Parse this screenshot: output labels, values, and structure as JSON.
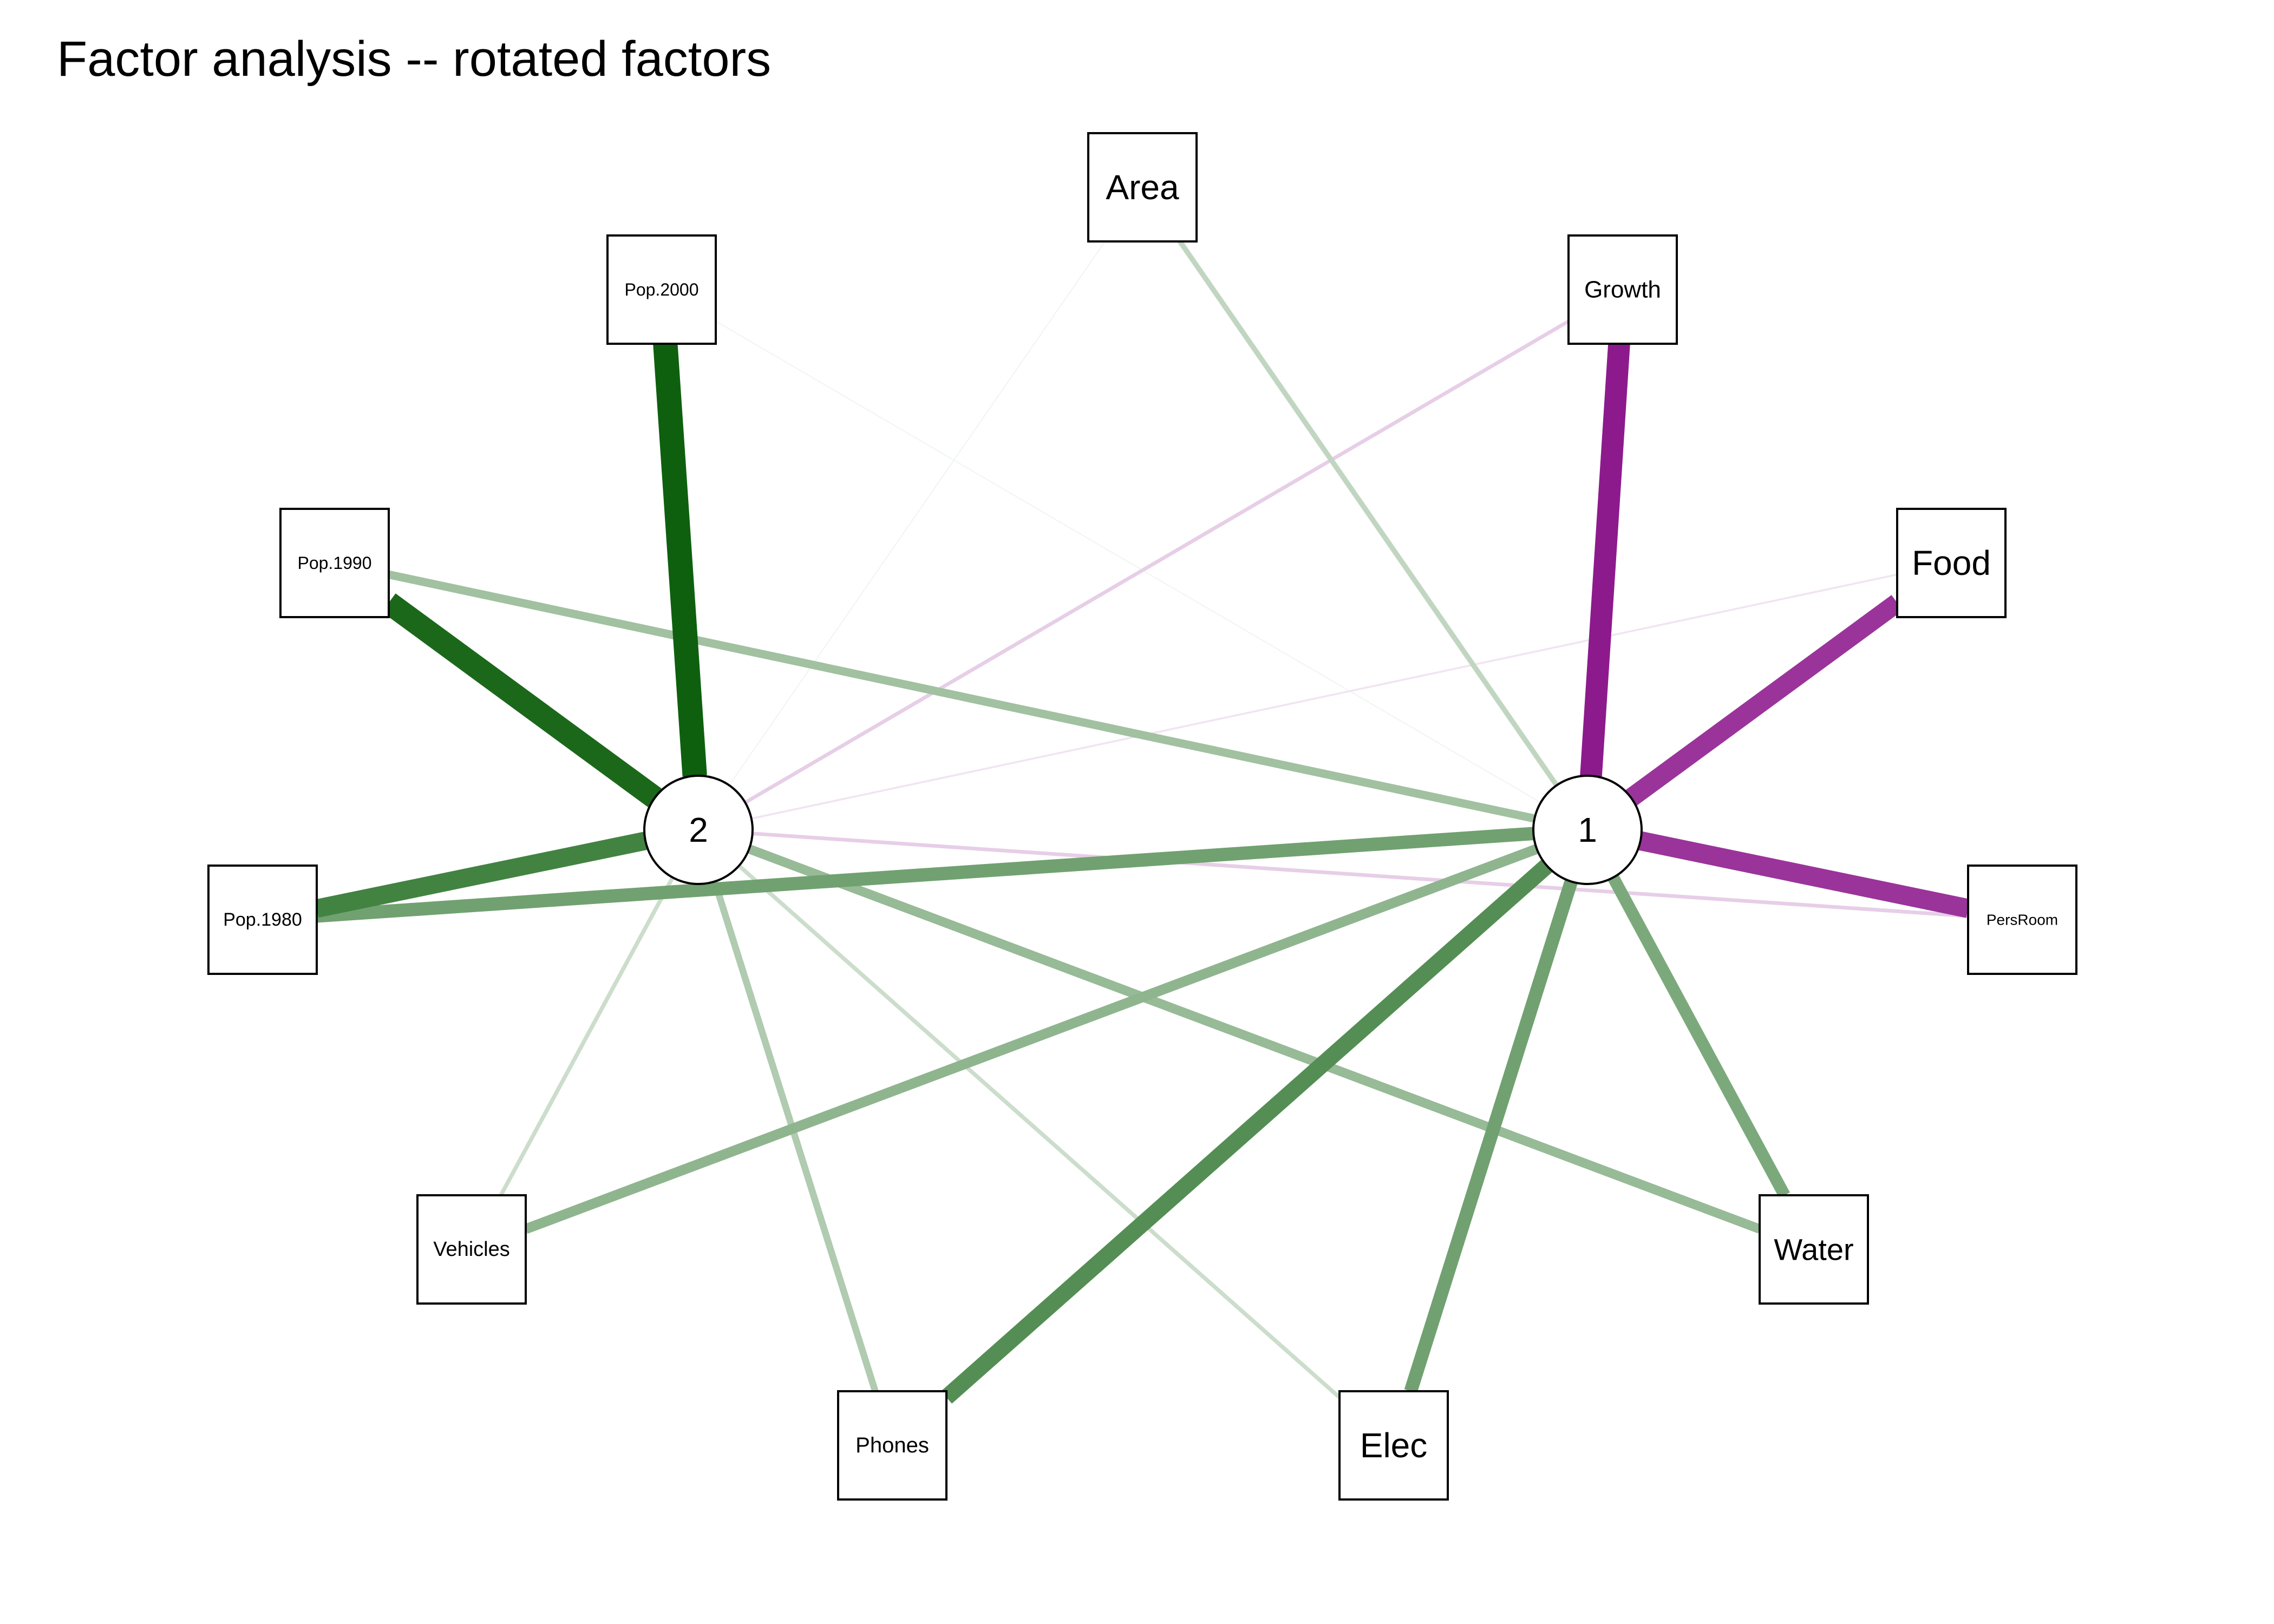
{
  "title": "Factor analysis -- rotated factors",
  "colors": {
    "positive": "#0b5e0b",
    "negative": "#800080"
  },
  "factors": [
    {
      "id": "1",
      "label": "1"
    },
    {
      "id": "2",
      "label": "2"
    }
  ],
  "variables": [
    {
      "id": "Area",
      "label": "Area"
    },
    {
      "id": "Growth",
      "label": "Growth"
    },
    {
      "id": "Food",
      "label": "Food"
    },
    {
      "id": "PersRoom",
      "label": "PersRoom"
    },
    {
      "id": "Water",
      "label": "Water"
    },
    {
      "id": "Elec",
      "label": "Elec"
    },
    {
      "id": "Phones",
      "label": "Phones"
    },
    {
      "id": "Vehicles",
      "label": "Vehicles"
    },
    {
      "id": "Pop.1980",
      "label": "Pop.1980"
    },
    {
      "id": "Pop.1990",
      "label": "Pop.1990"
    },
    {
      "id": "Pop.2000",
      "label": "Pop.2000"
    }
  ],
  "loadings": [
    {
      "variable": "Area",
      "factor": "1",
      "value": 0.35
    },
    {
      "variable": "Area",
      "factor": "2",
      "value": 0.08
    },
    {
      "variable": "Growth",
      "factor": "1",
      "value": -0.92
    },
    {
      "variable": "Growth",
      "factor": "2",
      "value": -0.28
    },
    {
      "variable": "Food",
      "factor": "1",
      "value": -0.84
    },
    {
      "variable": "Food",
      "factor": "2",
      "value": -0.18
    },
    {
      "variable": "PersRoom",
      "factor": "1",
      "value": -0.84
    },
    {
      "variable": "PersRoom",
      "factor": "2",
      "value": -0.28
    },
    {
      "variable": "Water",
      "factor": "1",
      "value": 0.62
    },
    {
      "variable": "Water",
      "factor": "2",
      "value": 0.52
    },
    {
      "variable": "Elec",
      "factor": "1",
      "value": 0.66
    },
    {
      "variable": "Elec",
      "factor": "2",
      "value": 0.3
    },
    {
      "variable": "Phones",
      "factor": "1",
      "value": 0.76
    },
    {
      "variable": "Phones",
      "factor": "2",
      "value": 0.42
    },
    {
      "variable": "Vehicles",
      "factor": "1",
      "value": 0.55
    },
    {
      "variable": "Vehicles",
      "factor": "2",
      "value": 0.3
    },
    {
      "variable": "Pop.1980",
      "factor": "1",
      "value": 0.66
    },
    {
      "variable": "Pop.1980",
      "factor": "2",
      "value": 0.82
    },
    {
      "variable": "Pop.1990",
      "factor": "1",
      "value": 0.48
    },
    {
      "variable": "Pop.1990",
      "factor": "2",
      "value": 0.95
    },
    {
      "variable": "Pop.2000",
      "factor": "1",
      "value": 0.02
    },
    {
      "variable": "Pop.2000",
      "factor": "2",
      "value": 0.99
    }
  ]
}
